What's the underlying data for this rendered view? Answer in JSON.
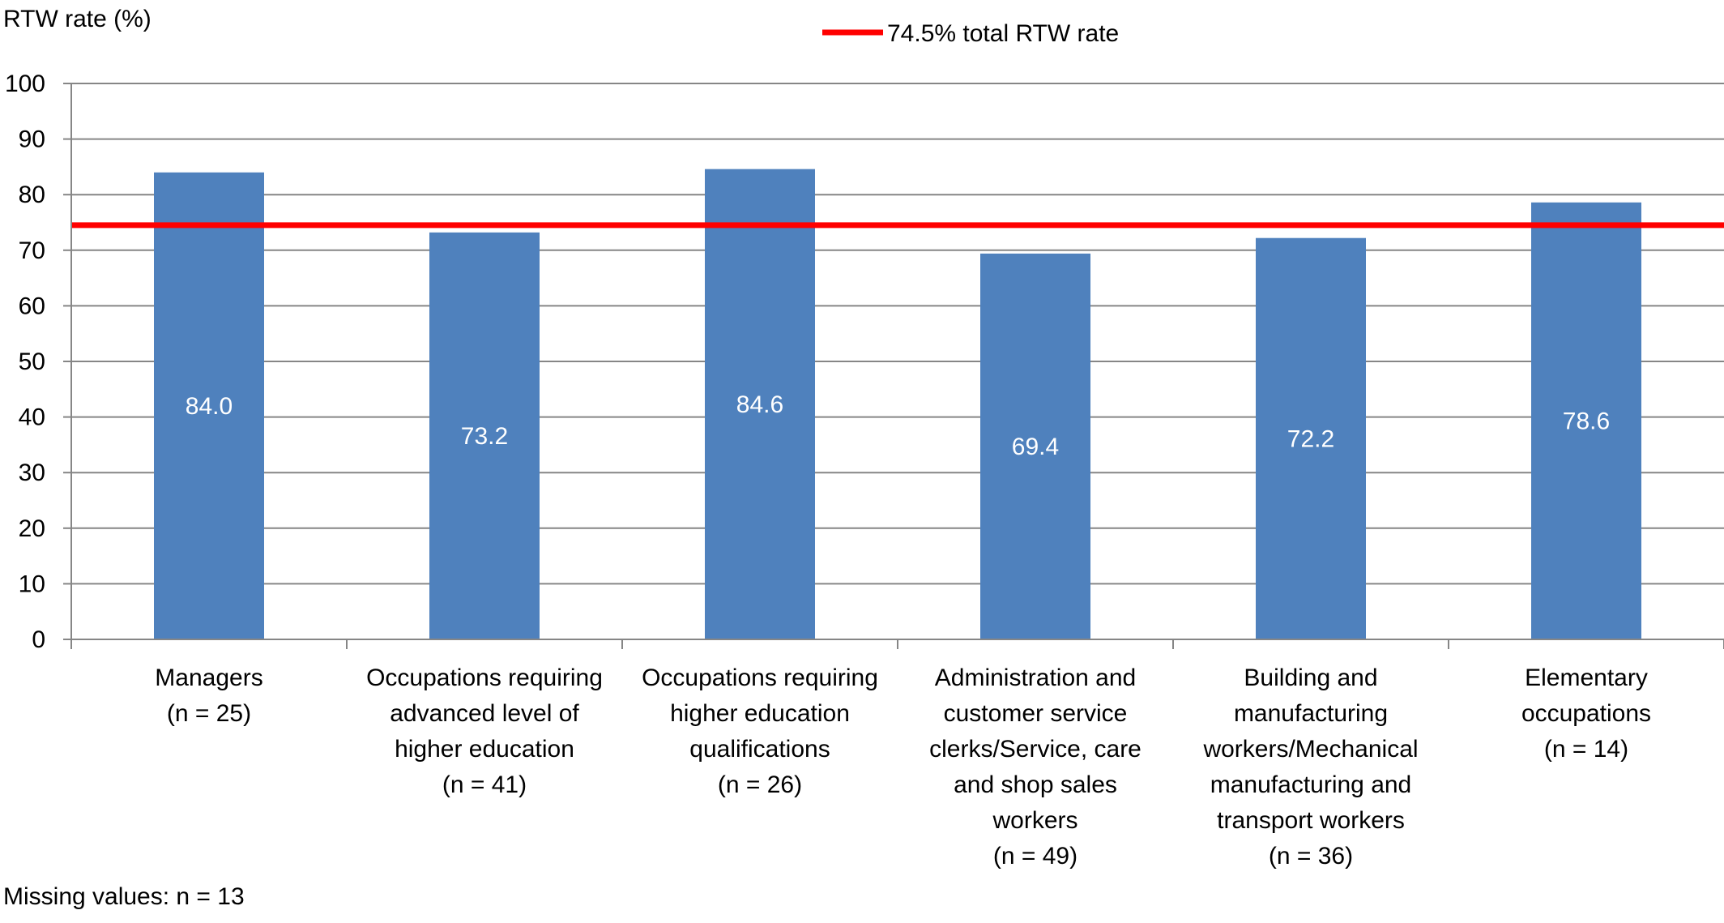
{
  "chart_data": {
    "type": "bar",
    "title": "",
    "ylabel": "RTW rate (%)",
    "xlabel": "",
    "ylim": [
      0,
      100
    ],
    "yticks": [
      0,
      10,
      20,
      30,
      40,
      50,
      60,
      70,
      80,
      90,
      100
    ],
    "grid": true,
    "categories": [
      [
        "Managers",
        "(n = 25)"
      ],
      [
        "Occupations requiring",
        "advanced level of",
        "higher education",
        "(n = 41)"
      ],
      [
        "Occupations requiring",
        "higher education",
        "qualifications",
        "(n = 26)"
      ],
      [
        "Administration and",
        "customer service",
        "clerks/Service, care",
        "and shop sales",
        "workers",
        "(n = 49)"
      ],
      [
        "Building and",
        "manufacturing",
        "workers/Mechanical",
        "manufacturing and",
        "transport workers",
        "(n = 36)"
      ],
      [
        "Elementary",
        "occupations",
        "(n = 14)"
      ]
    ],
    "values": [
      84.0,
      73.2,
      84.6,
      69.4,
      72.2,
      78.6
    ],
    "value_labels": [
      "84.0",
      "73.2",
      "84.6",
      "69.4",
      "72.2",
      "78.6"
    ],
    "reference_line": {
      "value": 74.5,
      "label": "74.5% total RTW rate"
    },
    "legend_position": "top-center",
    "colors": {
      "bar": "#4F81BD",
      "reference": "#FF0000",
      "grid": "#868686",
      "axis": "#868686"
    }
  },
  "footnote": "Missing values: n = 13"
}
